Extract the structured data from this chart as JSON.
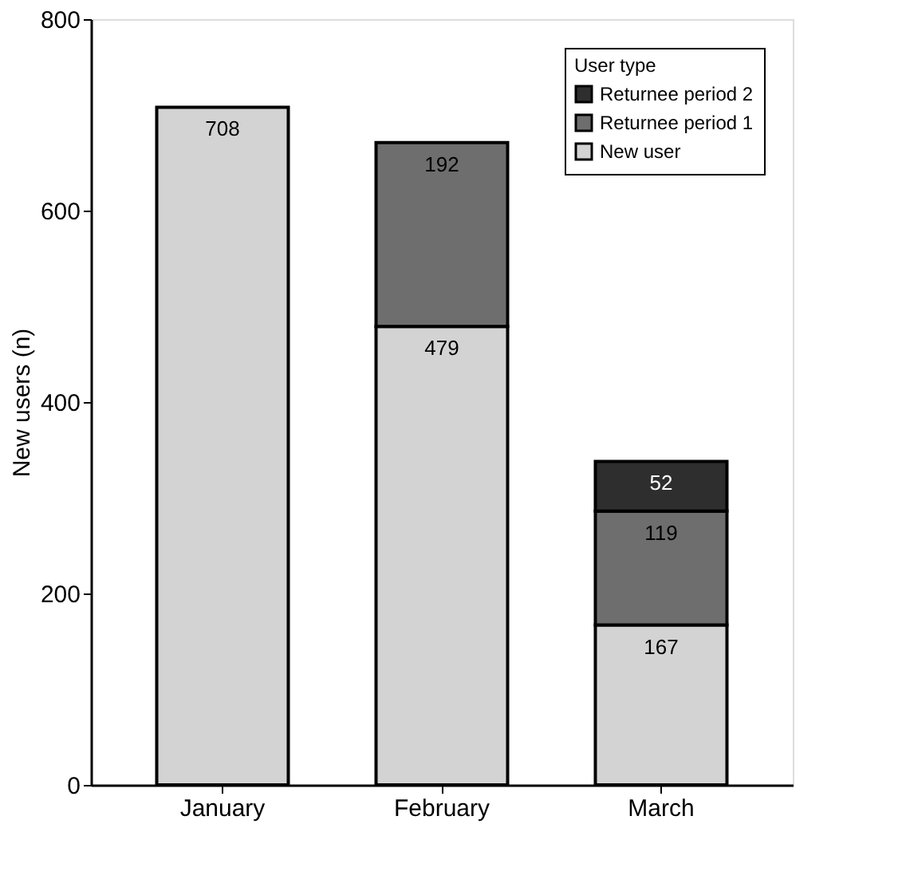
{
  "chart_data": {
    "type": "bar",
    "stacked": true,
    "ylabel": "New users (n)",
    "legend_title": "User type",
    "legend": "top right",
    "grid": false,
    "data_labels": true,
    "categories": [
      "January",
      "February",
      "March"
    ],
    "ylim": [
      0,
      800
    ],
    "yticks": [
      0,
      200,
      400,
      600,
      800
    ],
    "series": [
      {
        "name": "New user",
        "color": "#d3d3d3",
        "values": [
          708,
          479,
          167
        ]
      },
      {
        "name": "Returnee period 1",
        "color": "#6e6e6e",
        "values": [
          null,
          192,
          119
        ]
      },
      {
        "name": "Returnee period 2",
        "color": "#2e2e2e",
        "values": [
          null,
          null,
          52
        ]
      }
    ]
  }
}
